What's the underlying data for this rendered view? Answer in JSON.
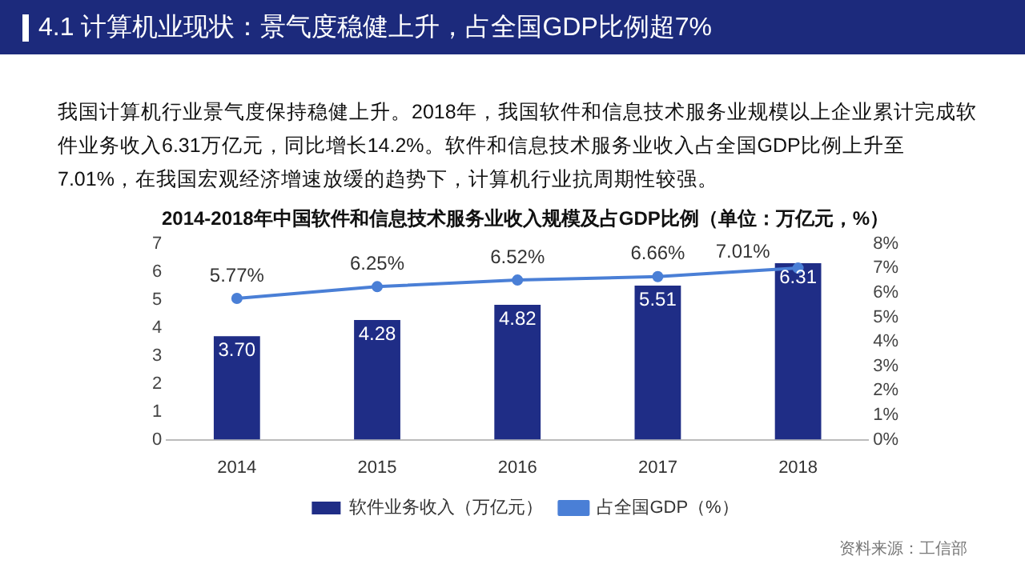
{
  "chart_data": {
    "type": "bar",
    "title": "4.1 计算机业现状：景气度稳健上升，占全国GDP比例超7%",
    "subtitle": "2014-2018年中国软件和信息技术服务业收入规模及占GDP比例（单位：万亿元，%）",
    "annotations": [
      "我国计算机行业景气度保持稳健上升。2018年，我国软件和信息技术服务业规模以上企业累计完成软件业务收入6.31万亿元，同比增长14.2%。软件和信息技术服务业收入占全国GDP比例上升至7.01%，在我国宏观经济增速放缓的趋势下，计算机行业抗周期性较强。",
      "资料来源：工信部"
    ],
    "categories": [
      "2014",
      "2015",
      "2016",
      "2017",
      "2018"
    ],
    "series": [
      {
        "name": "软件业务收入（万亿元）",
        "color": "#1f2d86",
        "values": [
          3.7,
          4.28,
          4.82,
          5.51,
          6.31
        ],
        "value_labels": [
          "3.70",
          "4.28",
          "4.82",
          "5.51",
          "6.31"
        ]
      },
      {
        "name": "占全国GDP（%）",
        "type": "line",
        "axis": "y2",
        "color": "#4a7fd6",
        "marker": "circle",
        "values": [
          5.77,
          6.25,
          6.52,
          6.66,
          7.01
        ],
        "value_labels": [
          "5.77%",
          "6.25%",
          "6.52%",
          "6.66%",
          "7.01%"
        ]
      }
    ],
    "ylim": [
      0,
      7
    ],
    "yticks": [
      0,
      1,
      2,
      3,
      4,
      5,
      6,
      7
    ],
    "y2lim": [
      0,
      8
    ],
    "y2ticks": [
      {
        "value": 0,
        "label": "0%"
      },
      {
        "value": 1,
        "label": "1%"
      },
      {
        "value": 2,
        "label": "2%"
      },
      {
        "value": 3,
        "label": "3%"
      },
      {
        "value": 4,
        "label": "4%"
      },
      {
        "value": 5,
        "label": "5%"
      },
      {
        "value": 6,
        "label": "6%"
      },
      {
        "value": 7,
        "label": "7%"
      },
      {
        "value": 8,
        "label": "8%"
      }
    ],
    "grid": false,
    "legend": "bottom"
  }
}
